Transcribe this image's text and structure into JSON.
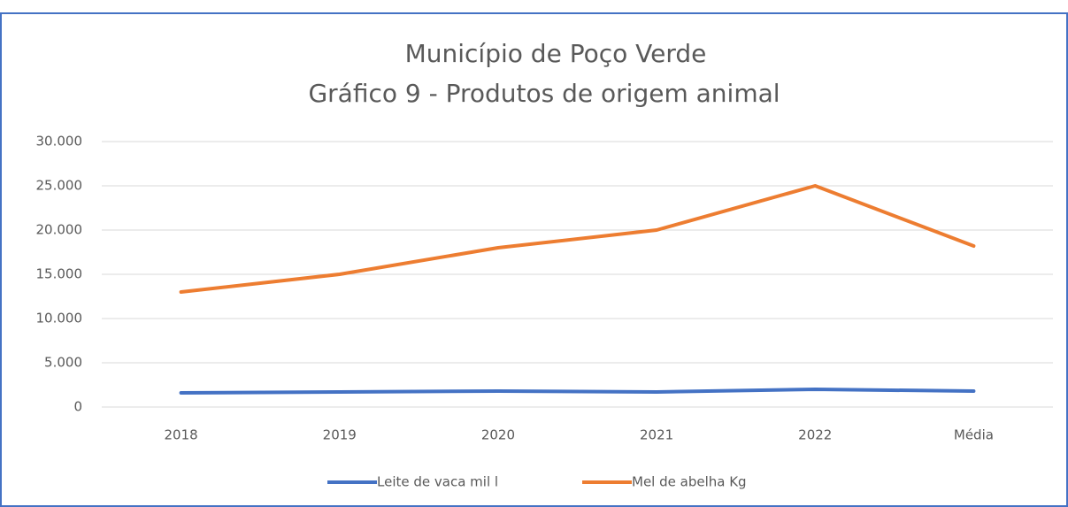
{
  "chart_data": {
    "type": "line",
    "title": "Município de Poço Verde",
    "subtitle": "Gráfico 9 - Produtos de origem animal",
    "categories": [
      "2018",
      "2019",
      "2020",
      "2021",
      "2022",
      "Média"
    ],
    "series": [
      {
        "name": "Leite de vaca mil l",
        "color": "#4472c4",
        "values": [
          1600,
          1700,
          1800,
          1700,
          2000,
          1800
        ]
      },
      {
        "name": "Mel de abelha Kg",
        "color": "#ed7d31",
        "values": [
          13000,
          15000,
          18000,
          20000,
          25000,
          18200
        ]
      }
    ],
    "ylim": [
      0,
      30000
    ],
    "yticks": [
      0,
      {
        "value": 5000,
        "label": "5.000"
      },
      {
        "value": 10000,
        "label": "10.000"
      },
      {
        "value": 15000,
        "label": "15.000"
      },
      {
        "value": 20000,
        "label": "20.000"
      },
      {
        "value": 25000,
        "label": "25.000"
      },
      {
        "value": 30000,
        "label": "30.000"
      }
    ],
    "grid": true,
    "legend": "bottom"
  }
}
